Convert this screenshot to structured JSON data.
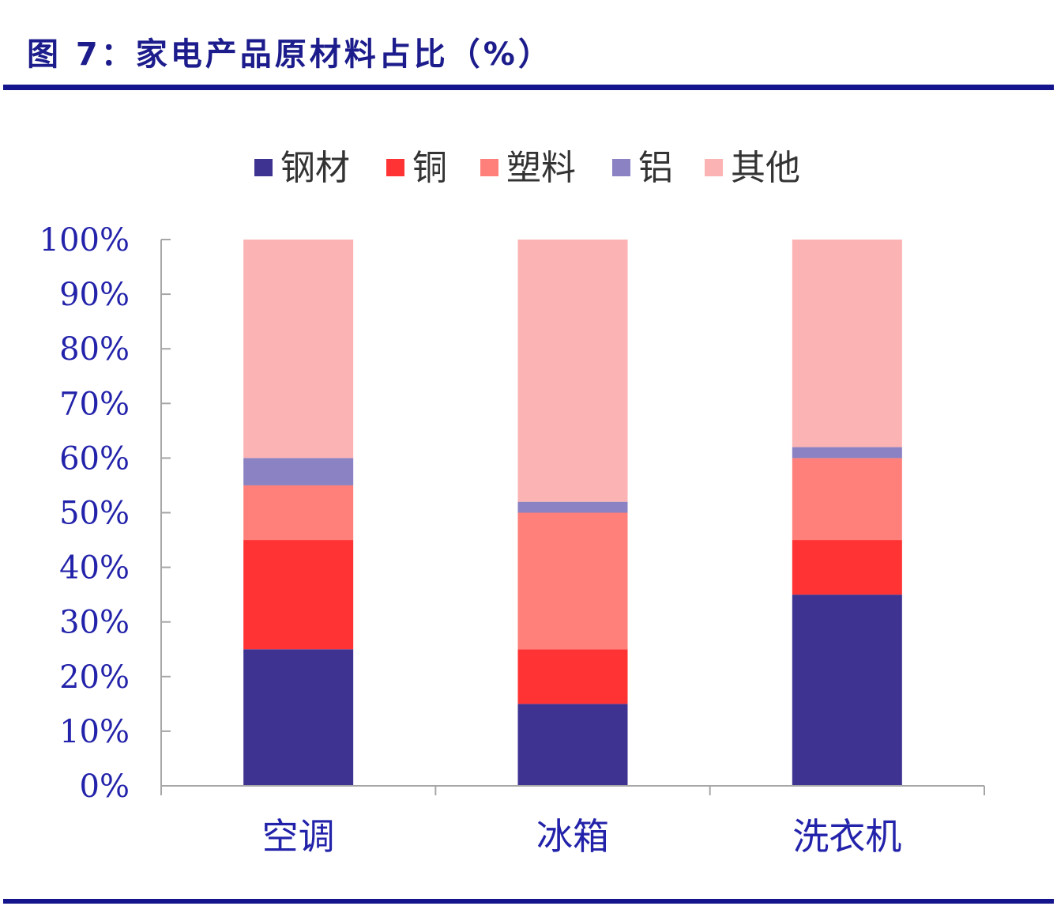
{
  "figure": {
    "title": "图 7：家电产品原材料占比（%）"
  },
  "colors": {
    "title": "#1c1c8c",
    "rule": "#14148c",
    "axis": "#a6a6a6",
    "tick_label": "#2222aa"
  },
  "chart_data": {
    "type": "bar",
    "stacked": true,
    "categories": [
      "空调",
      "冰箱",
      "洗衣机"
    ],
    "series": [
      {
        "name": "钢材",
        "color": "#3f3391",
        "values": [
          25,
          15,
          35
        ]
      },
      {
        "name": "铜",
        "color": "#ff3333",
        "values": [
          20,
          10,
          10
        ]
      },
      {
        "name": "塑料",
        "color": "#ff807a",
        "values": [
          10,
          25,
          15
        ]
      },
      {
        "name": "铝",
        "color": "#8a82c2",
        "values": [
          5,
          2,
          2
        ]
      },
      {
        "name": "其他",
        "color": "#fbb3b3",
        "values": [
          40,
          48,
          38
        ]
      }
    ],
    "ylim": [
      0,
      100
    ],
    "yticks": [
      "0%",
      "10%",
      "20%",
      "30%",
      "40%",
      "50%",
      "60%",
      "70%",
      "80%",
      "90%",
      "100%"
    ],
    "xlabel": "",
    "ylabel": "",
    "legend": "top-center",
    "grid": false
  }
}
